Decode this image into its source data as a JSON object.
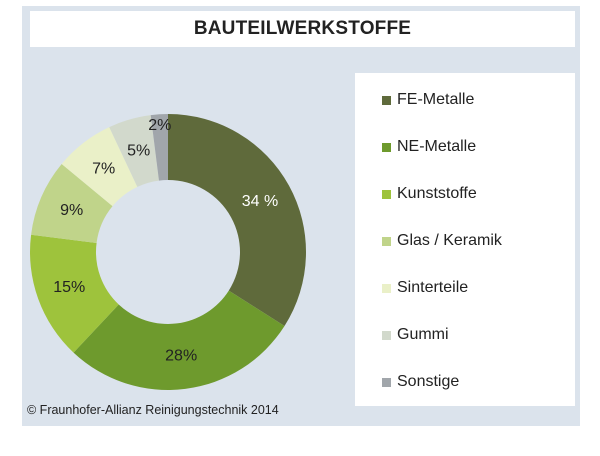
{
  "chart_data": {
    "type": "pie",
    "variant": "donut",
    "title": "BAUTEILWERKSTOFFE",
    "categories": [
      "FE-Metalle",
      "NE-Metalle",
      "Kunststoffe",
      "Glas / Keramik",
      "Sinterteile",
      "Gummi",
      "Sonstige"
    ],
    "values": [
      34,
      28,
      15,
      9,
      7,
      5,
      2
    ],
    "data_labels": [
      "34 %",
      "28%",
      "15%",
      "9%",
      "7%",
      "5%",
      "2%"
    ],
    "colors": [
      "#5f6a3b",
      "#6e9a2d",
      "#9ec33c",
      "#c0d48a",
      "#eaf0c8",
      "#d2d9cc",
      "#a1a6ab"
    ],
    "label_colors": [
      "#ffffff",
      "#222222",
      "#222222",
      "#222222",
      "#222222",
      "#222222",
      "#222222"
    ],
    "legend_position": "right",
    "unit": "%"
  },
  "footer": {
    "copyright": "© Fraunhofer-Allianz Reinigungstechnik 2014"
  },
  "colors": {
    "panel_background": "#dbe3ec",
    "box_background": "#ffffff",
    "text": "#222222"
  }
}
